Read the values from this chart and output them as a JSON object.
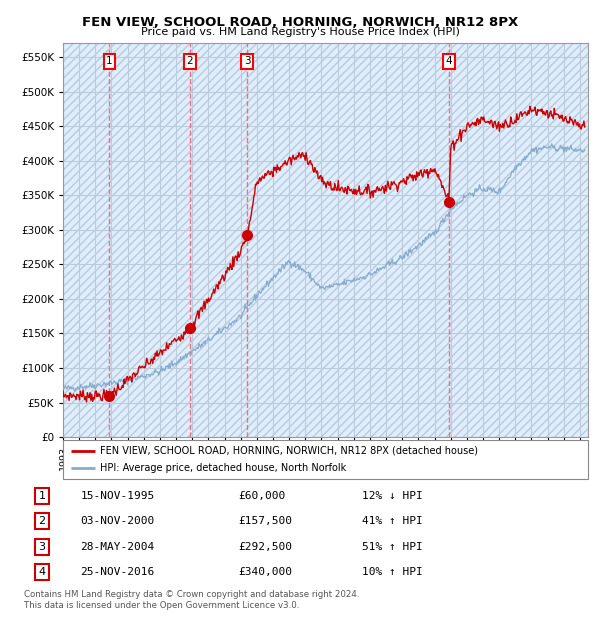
{
  "title": "FEN VIEW, SCHOOL ROAD, HORNING, NORWICH, NR12 8PX",
  "subtitle": "Price paid vs. HM Land Registry's House Price Index (HPI)",
  "xlim_start": 1993.0,
  "xlim_end": 2025.5,
  "ylim_min": 0,
  "ylim_max": 570000,
  "yticks": [
    0,
    50000,
    100000,
    150000,
    200000,
    250000,
    300000,
    350000,
    400000,
    450000,
    500000,
    550000
  ],
  "xticks": [
    1993,
    1994,
    1995,
    1996,
    1997,
    1998,
    1999,
    2000,
    2001,
    2002,
    2003,
    2004,
    2005,
    2006,
    2007,
    2008,
    2009,
    2010,
    2011,
    2012,
    2013,
    2014,
    2015,
    2016,
    2017,
    2018,
    2019,
    2020,
    2021,
    2022,
    2023,
    2024,
    2025
  ],
  "sale_dates": [
    1995.877,
    2000.84,
    2004.411,
    2016.899
  ],
  "sale_prices": [
    60000,
    157500,
    292500,
    340000
  ],
  "sale_labels": [
    "1",
    "2",
    "3",
    "4"
  ],
  "red_line_color": "#cc0000",
  "blue_line_color": "#88aacc",
  "grid_color": "#bbccdd",
  "bg_color": "#ddeeff",
  "legend_label_red": "FEN VIEW, SCHOOL ROAD, HORNING, NORWICH, NR12 8PX (detached house)",
  "legend_label_blue": "HPI: Average price, detached house, North Norfolk",
  "table_data": [
    [
      "1",
      "15-NOV-1995",
      "£60,000",
      "12% ↓ HPI"
    ],
    [
      "2",
      "03-NOV-2000",
      "£157,500",
      "41% ↑ HPI"
    ],
    [
      "3",
      "28-MAY-2004",
      "£292,500",
      "51% ↑ HPI"
    ],
    [
      "4",
      "25-NOV-2016",
      "£340,000",
      "10% ↑ HPI"
    ]
  ],
  "footnote": "Contains HM Land Registry data © Crown copyright and database right 2024.\nThis data is licensed under the Open Government Licence v3.0.",
  "hpi_anchors_x": [
    1993,
    1995,
    1997,
    1999,
    2000,
    2002,
    2004,
    2005,
    2007,
    2008,
    2009,
    2010,
    2012,
    2014,
    2016,
    2017,
    2018,
    2019,
    2020,
    2021,
    2022,
    2023,
    2024,
    2025
  ],
  "hpi_anchors_y": [
    70000,
    75000,
    82000,
    95000,
    108000,
    140000,
    175000,
    205000,
    255000,
    240000,
    215000,
    220000,
    235000,
    260000,
    295000,
    330000,
    350000,
    360000,
    355000,
    390000,
    415000,
    420000,
    418000,
    415000
  ],
  "red_anchors_x": [
    1993,
    1995.877,
    2000.84,
    2004.0,
    2004.411,
    2005,
    2007,
    2008,
    2009,
    2010,
    2012,
    2014,
    2016,
    2016.899,
    2017,
    2018,
    2019,
    2020,
    2021,
    2022,
    2023,
    2024,
    2025
  ],
  "red_anchors_y": [
    60000,
    60000,
    157500,
    270000,
    292500,
    370000,
    400000,
    410000,
    370000,
    360000,
    355000,
    370000,
    390000,
    340000,
    420000,
    450000,
    460000,
    450000,
    460000,
    475000,
    470000,
    460000,
    450000
  ]
}
